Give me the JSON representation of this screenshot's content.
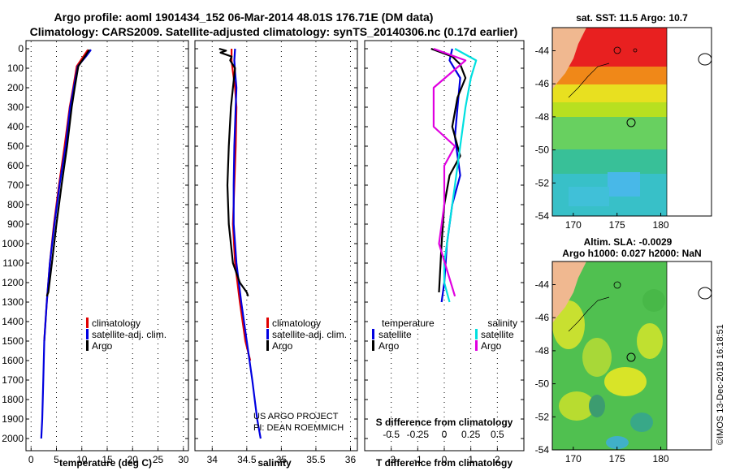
{
  "header": {
    "title_line1": "Argo profile: aoml 1901434_152 06-Mar-2014 48.01S 176.71E (DM data)",
    "title_line2": "Climatology: CARS2009. Satellite-adjusted climatology: synTS_20140306.nc (0.17d earlier)"
  },
  "depth_ticks": [
    "0",
    "100",
    "200",
    "300",
    "400",
    "500",
    "600",
    "700",
    "800",
    "900",
    "1000",
    "1100",
    "1200",
    "1300",
    "1400",
    "1500",
    "1600",
    "1700",
    "1800",
    "1900",
    "2000"
  ],
  "colors": {
    "climatology": "#e00000",
    "satellite": "#0000e0",
    "argo": "#000000",
    "sat_salinity": "#00e0e0",
    "argo_salinity": "#e000e0",
    "land": "#f0b890"
  },
  "chart_data": [
    {
      "type": "line",
      "xlabel": "temperature (deg C)",
      "xlim": [
        -1,
        31
      ],
      "ylim": [
        0,
        2000
      ],
      "xticks": [
        "0",
        "5",
        "10",
        "15",
        "20",
        "25",
        "30"
      ],
      "legend": [
        "climatology",
        "satellite-adj. clim.",
        "Argo"
      ],
      "series": [
        {
          "name": "climatology",
          "x": [
            11.2,
            10.3,
            9.0,
            8.3,
            7.6,
            6.6,
            5.5,
            4.5,
            3.7,
            3.1,
            2.6
          ],
          "y": [
            5,
            40,
            90,
            200,
            300,
            500,
            700,
            900,
            1100,
            1300,
            1500
          ]
        },
        {
          "name": "satellite-adj. clim.",
          "x": [
            11.8,
            10.8,
            9.2,
            8.4,
            7.7,
            6.8,
            5.6,
            4.6,
            3.7,
            3.1,
            2.6,
            2.4,
            2.2,
            2.0
          ],
          "y": [
            5,
            40,
            90,
            200,
            300,
            500,
            700,
            900,
            1100,
            1300,
            1500,
            1700,
            1900,
            2000
          ]
        },
        {
          "name": "Argo",
          "x": [
            11.5,
            10.6,
            9.3,
            8.6,
            8.0,
            7.1,
            6.0,
            5.0,
            4.1,
            3.4,
            3.1
          ],
          "y": [
            5,
            40,
            90,
            200,
            300,
            500,
            700,
            900,
            1100,
            1250,
            1270
          ]
        }
      ]
    },
    {
      "type": "line",
      "xlabel": "salinity",
      "xlim": [
        33.75,
        36.1
      ],
      "ylim": [
        0,
        2000
      ],
      "xticks": [
        "34",
        "34.5",
        "35",
        "35.5",
        "36"
      ],
      "legend": [
        "climatology",
        "satellite-adj. clim.",
        "Argo"
      ],
      "footer_line1": "US ARGO PROJECT",
      "footer_line2": "PI: DEAN ROEMMICH",
      "series": [
        {
          "name": "climatology",
          "x": [
            34.28,
            34.28,
            34.3,
            34.33,
            34.35,
            34.34,
            34.32,
            34.3,
            34.33,
            34.4,
            34.48,
            34.55
          ],
          "y": [
            0,
            60,
            120,
            200,
            300,
            500,
            700,
            900,
            1100,
            1300,
            1500,
            1600
          ]
        },
        {
          "name": "satellite-adj. clim.",
          "x": [
            34.33,
            34.32,
            34.33,
            34.35,
            34.34,
            34.32,
            34.31,
            34.31,
            34.35,
            34.42,
            34.5,
            34.58,
            34.65,
            34.7
          ],
          "y": [
            0,
            60,
            120,
            200,
            300,
            500,
            700,
            900,
            1100,
            1300,
            1500,
            1700,
            1900,
            2000
          ]
        },
        {
          "name": "Argo",
          "x": [
            34.1,
            34.2,
            34.12,
            34.28,
            34.26,
            34.33,
            34.3,
            34.27,
            34.24,
            34.22,
            34.24,
            34.3,
            34.4,
            34.5,
            34.52
          ],
          "y": [
            0,
            10,
            20,
            40,
            60,
            100,
            200,
            300,
            500,
            700,
            900,
            1100,
            1200,
            1250,
            1270
          ]
        }
      ]
    },
    {
      "type": "line",
      "xlabel": "T difference from climatology",
      "xlabel2": "S difference from climatology",
      "xlim": [
        -3,
        3
      ],
      "ylim": [
        0,
        2000
      ],
      "xticks": [
        "-2",
        "-1",
        "0",
        "1",
        "2"
      ],
      "xticks2": [
        "-0.5",
        "-0.25",
        "0",
        "0.25",
        "0.5"
      ],
      "legend_left_title": "temperature",
      "legend_right_title": "salinity",
      "legend_left": [
        "satellite",
        "Argo"
      ],
      "legend_right": [
        "satellite",
        "Argo"
      ],
      "series": [
        {
          "name": "satellite",
          "x": [
            0.3,
            0.2,
            0.6,
            0.5,
            0.4,
            0.5,
            0.6,
            0.3,
            0.1,
            0.0,
            -0.1
          ],
          "y": [
            0,
            60,
            150,
            300,
            450,
            550,
            650,
            800,
            1000,
            1200,
            1300
          ]
        },
        {
          "name": "Argo",
          "x": [
            -0.5,
            0.3,
            0.6,
            0.8,
            0.5,
            0.3,
            0.6,
            0.2,
            0.0,
            -0.1,
            -0.2
          ],
          "y": [
            0,
            40,
            80,
            150,
            250,
            400,
            550,
            650,
            800,
            1000,
            1250
          ]
        },
        {
          "name": "satellite",
          "x": [
            0.1,
            0.3,
            0.25,
            0.2,
            0.15,
            0.1,
            0.05,
            0.0,
            0.0,
            0.05
          ],
          "y": [
            0,
            60,
            150,
            300,
            500,
            700,
            900,
            1100,
            1200,
            1300
          ]
        },
        {
          "name": "Argo",
          "x": [
            -0.1,
            0.2,
            -0.1,
            -0.1,
            0.1,
            0.0,
            0.0,
            -0.05,
            0.1
          ],
          "y": [
            0,
            60,
            200,
            400,
            500,
            600,
            800,
            1000,
            1270
          ]
        }
      ]
    }
  ],
  "maps": {
    "top_title": "sat. SST: 11.5 Argo: 10.7",
    "bottom_title_line1": "Altim. SLA: -0.0029",
    "bottom_title_line2": "Argo h1000: 0.027 h2000: NaN",
    "lon_ticks": [
      "170",
      "175",
      "180"
    ],
    "lat_ticks": [
      "-44",
      "-46",
      "-48",
      "-50",
      "-52",
      "-54"
    ],
    "credit": "©IMOS 13-Dec-2018 16:18:51"
  }
}
